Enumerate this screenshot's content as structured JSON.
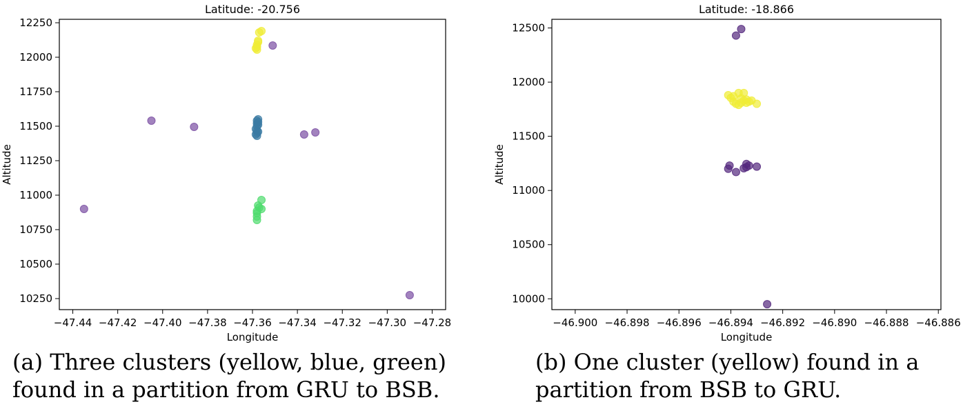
{
  "chart_data": [
    {
      "type": "scatter",
      "title": "Latitude: -20.756",
      "xlabel": "Longitude",
      "ylabel": "Altitude",
      "xlim": [
        -47.446,
        -47.274
      ],
      "ylim": [
        10170,
        12275
      ],
      "xticks": [
        -47.44,
        -47.42,
        -47.4,
        -47.38,
        -47.36,
        -47.34,
        -47.32,
        -47.3,
        -47.28
      ],
      "xtick_labels": [
        "−47.44",
        "−47.42",
        "−47.40",
        "−47.38",
        "−47.36",
        "−47.34",
        "−47.32",
        "−47.30",
        "−47.28"
      ],
      "yticks": [
        10250,
        10500,
        10750,
        11000,
        11250,
        11500,
        11750,
        12000,
        12250
      ],
      "ytick_labels": [
        "10250",
        "10500",
        "10750",
        "11000",
        "11250",
        "11500",
        "11750",
        "12000",
        "12250"
      ],
      "grid": false,
      "colors": {
        "noise": "#7b4fa3",
        "blue": "#3a7aa3",
        "green": "#4fdc6d",
        "yellow": "#f0ec36"
      },
      "series": [
        {
          "color": "noise",
          "points": [
            [
              -47.435,
              10900
            ],
            [
              -47.405,
              11540
            ],
            [
              -47.386,
              11495
            ],
            [
              -47.351,
              12085
            ],
            [
              -47.337,
              11440
            ],
            [
              -47.332,
              11455
            ],
            [
              -47.29,
              10275
            ]
          ]
        },
        {
          "color": "blue",
          "points": [
            [
              -47.358,
              11430
            ],
            [
              -47.358,
              11450
            ],
            [
              -47.358,
              11470
            ],
            [
              -47.3585,
              11480
            ],
            [
              -47.358,
              11500
            ],
            [
              -47.358,
              11520
            ],
            [
              -47.358,
              11540
            ],
            [
              -47.3575,
              11550
            ],
            [
              -47.3585,
              11440
            ],
            [
              -47.3575,
              11460
            ],
            [
              -47.3575,
              11510
            ],
            [
              -47.3575,
              11530
            ]
          ]
        },
        {
          "color": "green",
          "points": [
            [
              -47.358,
              10820
            ],
            [
              -47.358,
              10845
            ],
            [
              -47.358,
              10870
            ],
            [
              -47.358,
              10885
            ],
            [
              -47.357,
              10910
            ],
            [
              -47.3575,
              10925
            ],
            [
              -47.356,
              10900
            ],
            [
              -47.356,
              10965
            ]
          ]
        },
        {
          "color": "yellow",
          "points": [
            [
              -47.358,
              12055
            ],
            [
              -47.358,
              12075
            ],
            [
              -47.358,
              12090
            ],
            [
              -47.3575,
              12110
            ],
            [
              -47.3575,
              12120
            ],
            [
              -47.3585,
              12065
            ],
            [
              -47.357,
              12180
            ],
            [
              -47.356,
              12190
            ]
          ]
        }
      ]
    },
    {
      "type": "scatter",
      "title": "Latitude: -18.866",
      "xlabel": "Longitude",
      "ylabel": "Altitude",
      "xlim": [
        -46.9009,
        -46.8859
      ],
      "ylim": [
        9900,
        12580
      ],
      "xticks": [
        -46.9,
        -46.898,
        -46.896,
        -46.894,
        -46.892,
        -46.89,
        -46.888,
        -46.886
      ],
      "xtick_labels": [
        "−46.900",
        "−46.898",
        "−46.896",
        "−46.894",
        "−46.892",
        "−46.890",
        "−46.888",
        "−46.886"
      ],
      "yticks": [
        10000,
        10500,
        11000,
        11500,
        12000,
        12500
      ],
      "ytick_labels": [
        "10000",
        "10500",
        "11000",
        "11500",
        "12000",
        "12500"
      ],
      "grid": false,
      "colors": {
        "noise": "#54287e",
        "yellow": "#f0ec36"
      },
      "series": [
        {
          "color": "noise",
          "points": [
            [
              -46.8936,
              12490
            ],
            [
              -46.8938,
              12430
            ],
            [
              -46.8941,
              11200
            ],
            [
              -46.89405,
              11230
            ],
            [
              -46.8938,
              11170
            ],
            [
              -46.8935,
              11205
            ],
            [
              -46.8934,
              11215
            ],
            [
              -46.8934,
              11245
            ],
            [
              -46.8933,
              11230
            ],
            [
              -46.893,
              11220
            ],
            [
              -46.8926,
              9950
            ]
          ]
        },
        {
          "color": "yellow",
          "points": [
            [
              -46.8941,
              11880
            ],
            [
              -46.894,
              11855
            ],
            [
              -46.8939,
              11870
            ],
            [
              -46.8939,
              11820
            ],
            [
              -46.8938,
              11800
            ],
            [
              -46.8937,
              11790
            ],
            [
              -46.8937,
              11900
            ],
            [
              -46.8936,
              11810
            ],
            [
              -46.8936,
              11850
            ],
            [
              -46.8935,
              11830
            ],
            [
              -46.8935,
              11900
            ],
            [
              -46.8934,
              11810
            ],
            [
              -46.8934,
              11840
            ],
            [
              -46.8933,
              11820
            ],
            [
              -46.8932,
              11830
            ],
            [
              -46.893,
              11800
            ]
          ]
        }
      ]
    }
  ],
  "captions": {
    "a": {
      "line1": "(a) Three clusters (yellow, blue, green)",
      "line2": "found in a partition from GRU to BSB."
    },
    "b": {
      "line1": "(b) One cluster (yellow) found in a",
      "line2": "partition from BSB to GRU."
    }
  }
}
